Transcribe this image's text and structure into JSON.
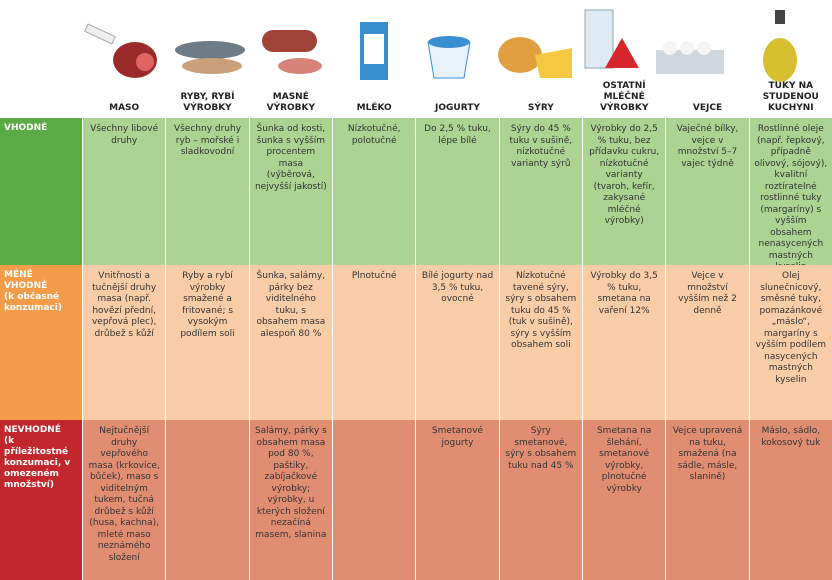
{
  "columns": [
    "MASO",
    "RYBY, RYBÍ VÝROBKY",
    "MASNÉ VÝROBKY",
    "MLÉKO",
    "JOGURTY",
    "SÝRY",
    "OSTATNÍ MLÉČNÉ VÝROBKY",
    "VEJCE",
    "TUKY NA STUDENOU KUCHYNI"
  ],
  "rows": [
    {
      "label": "VHODNÉ",
      "cells": [
        "Všechny libové druhy",
        "Všechny druhy ryb – mořské i sladkovodní",
        "Šunka od kosti, šunka s vyšším procentem masa (výběrová, nejvyšší jakostí)",
        "Nízkotučné, polotučné",
        "Do 2,5 % tuku, lépe bílé",
        "Sýry do 45 % tuku v sušině, nízkotučné varianty sýrů",
        "Výrobky do 2,5 % tuku, bez přídavku cukru, nízkotučné varianty (tvaroh, kefír, zakysané mléčné výrobky)",
        "Vaječné bílky, vejce v množství 5–7 vajec týdně",
        "Rostlinné oleje (např. řepkový, případně olivový, sójový), kvalitní roztíratelné rostlinné tuky (margaríny) s vyšším obsahem nenasycených mastných kyselin"
      ]
    },
    {
      "label": "MÉNĚ VHODNÉ",
      "note": "(k občasné konzumaci)",
      "cells": [
        "Vnitřnosti a tučnější druhy masa (např. hovězí přední, vepřová plec), drůbež s kůží",
        "Ryby a rybí výrobky smažené a fritované; s vysokým podílem soli",
        "Šunka, salámy, párky bez viditelného tuku, s obsahem masa alespoň 80 %",
        "Plnotučné",
        "Bílé jogurty nad 3,5 % tuku, ovocné",
        "Nízkotučné tavené sýry, sýry s obsahem tuku do 45 % (tuk v sušině), sýry s vyšším obsahem soli",
        "Výrobky do 3,5 % tuku, smetana na vaření 12%",
        "Vejce v množství vyšším než 2 denně",
        "Olej slunečnicový, směsné tuky, pomazánkové „máslo“, margaríny s vyšším podílem nasycených mastných kyselin"
      ]
    },
    {
      "label": "NEVHODNÉ",
      "note": "(k příležitostné konzumaci, v omezeném množství)",
      "cells": [
        "Nejtučnější druhy vepřového masa (krkovice, bůček), maso s viditelným tukem, tučná drůbež s kůží (husa, kachna), mleté maso neznámého složení",
        null,
        "Salámy, párky s obsahem masa pod 80 %, paštiky, zabíjačkové výrobky; výrobky, u kterých složení nezačíná masem, slanina",
        null,
        "Smetanové jogurty",
        "Sýry smetanové, sýry s obsahem tuku nad 45 %",
        "Smetana na šlehání, smetanové výrobky, plnotučné výrobky",
        "Vejce upravená na tuku, smažená (na sádle, másle, slanině)",
        "Máslo, sádlo, kokosový tuk"
      ]
    }
  ]
}
